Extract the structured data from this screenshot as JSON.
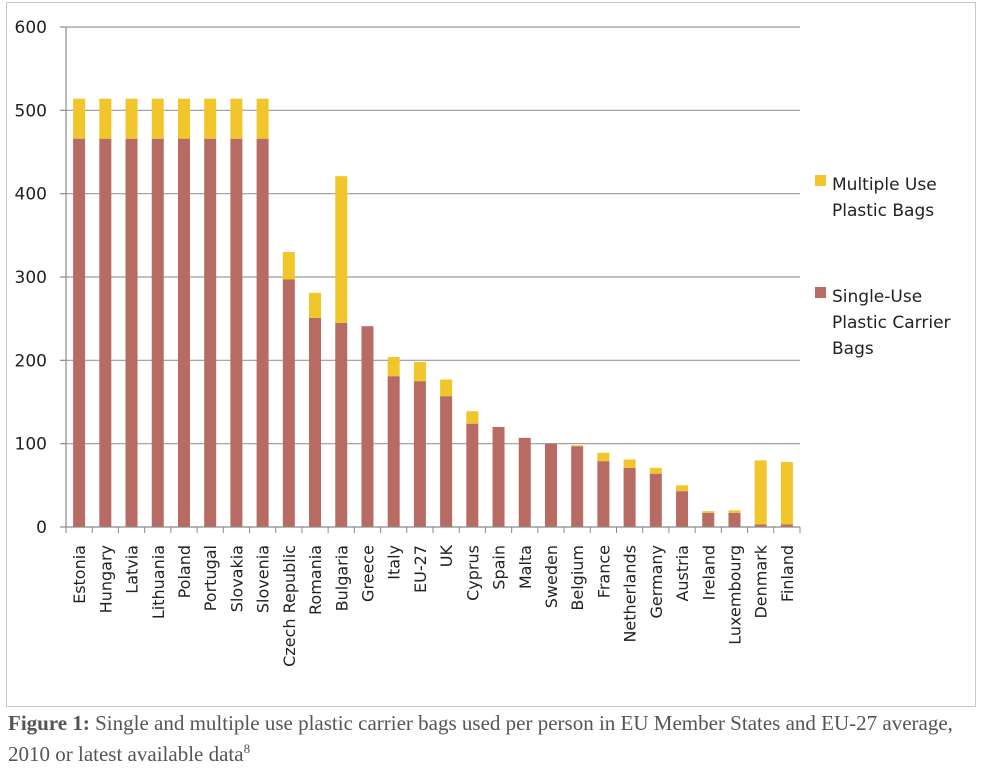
{
  "chart_data": {
    "type": "bar",
    "stacked": true,
    "categories": [
      "Estonia",
      "Hungary",
      "Latvia",
      "Lithuania",
      "Poland",
      "Portugal",
      "Slovakia",
      "Slovenia",
      "Czech Republic",
      "Romania",
      "Bulgaria",
      "Greece",
      "Italy",
      "EU-27",
      "UK",
      "Cyprus",
      "Spain",
      "Malta",
      "Sweden",
      "Belgium",
      "France",
      "Netherlands",
      "Germany",
      "Austria",
      "Ireland",
      "Luxembourg",
      "Denmark",
      "Finland"
    ],
    "series": [
      {
        "name": "Single-Use Plastic Carrier Bags",
        "color": "#b86b63",
        "values": [
          466,
          466,
          466,
          466,
          466,
          466,
          466,
          466,
          297,
          251,
          245,
          241,
          181,
          175,
          157,
          124,
          120,
          107,
          100,
          97,
          79,
          71,
          64,
          43,
          17,
          17,
          3,
          3
        ]
      },
      {
        "name": "Multiple Use Plastic Bags",
        "color": "#f0c62a",
        "values": [
          48,
          48,
          48,
          48,
          48,
          48,
          48,
          48,
          33,
          30,
          176,
          0,
          23,
          23,
          20,
          15,
          0,
          0,
          0,
          1,
          10,
          10,
          7,
          7,
          2,
          3,
          77,
          75
        ]
      }
    ],
    "ylim": [
      0,
      600
    ],
    "yticks": [
      "0",
      "100",
      "200",
      "300",
      "400",
      "500",
      "600"
    ],
    "grid": true,
    "legend_position": "right",
    "legend": [
      {
        "lines": [
          "Multiple Use",
          "Plastic Bags"
        ],
        "color": "#f0c62a"
      },
      {
        "lines": [
          "Single-Use",
          "Plastic Carrier",
          "Bags"
        ],
        "color": "#b86b63"
      }
    ]
  },
  "caption": {
    "label": "Figure 1:",
    "text": " Single and multiple use plastic carrier bags used per person in EU Member States and EU-27 average, 2010 or latest available data",
    "footnote": "8"
  }
}
